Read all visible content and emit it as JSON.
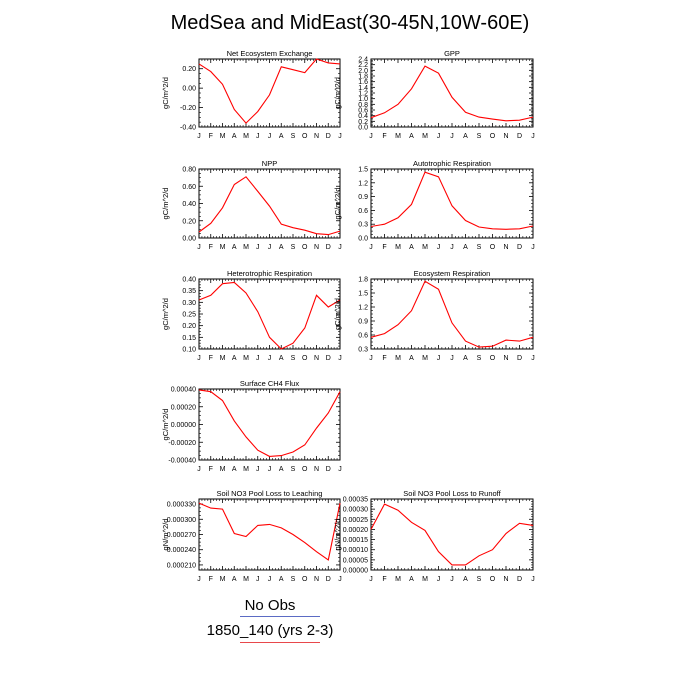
{
  "title": "MedSea and MidEast(30-45N,10W-60E)",
  "legend": {
    "entries": [
      {
        "label": "No Obs",
        "color": "#5b6bc4"
      },
      {
        "label": "1850_140 (yrs 2-3)",
        "color": "#e8484b"
      }
    ]
  },
  "line_color": "#ff0000",
  "chart_data": [
    {
      "type": "line",
      "title": "Net Ecosystem Exchange",
      "ylabel": "gC/m^2/d",
      "categories": [
        "J",
        "F",
        "M",
        "A",
        "M",
        "J",
        "J",
        "A",
        "S",
        "O",
        "N",
        "D",
        "J"
      ],
      "ylim": [
        -0.4,
        0.3
      ],
      "yticks": [
        -0.4,
        -0.2,
        0.0,
        0.2
      ],
      "ytick_labels": [
        "-0.40",
        "-0.20",
        "0.00",
        "0.20"
      ],
      "series": [
        {
          "values": [
            0.25,
            0.17,
            0.04,
            -0.22,
            -0.36,
            -0.24,
            -0.07,
            0.22,
            0.19,
            0.16,
            0.3,
            0.26,
            0.25
          ]
        }
      ]
    },
    {
      "type": "line",
      "title": "GPP",
      "ylabel": "gC/m^2/d",
      "categories": [
        "J",
        "F",
        "M",
        "A",
        "M",
        "J",
        "J",
        "A",
        "S",
        "O",
        "N",
        "D",
        "J"
      ],
      "ylim": [
        0,
        2.4
      ],
      "yticks": [
        0,
        0.2,
        0.4,
        0.6,
        0.8,
        1.0,
        1.2,
        1.4,
        1.6,
        1.8,
        2.0,
        2.2,
        2.4
      ],
      "ytick_labels": [
        "0.0",
        "0.2",
        "0.4",
        "0.6",
        "0.8",
        "1.0",
        "1.2",
        "1.4",
        "1.6",
        "1.8",
        "2.0",
        "2.2",
        "2.4"
      ],
      "series": [
        {
          "values": [
            0.33,
            0.5,
            0.8,
            1.35,
            2.15,
            1.9,
            1.05,
            0.52,
            0.35,
            0.28,
            0.22,
            0.24,
            0.35
          ]
        }
      ]
    },
    {
      "type": "line",
      "title": "NPP",
      "ylabel": "gC/m^2/d",
      "categories": [
        "J",
        "F",
        "M",
        "A",
        "M",
        "J",
        "J",
        "A",
        "S",
        "O",
        "N",
        "D",
        "J"
      ],
      "ylim": [
        0,
        0.8
      ],
      "yticks": [
        0,
        0.2,
        0.4,
        0.6,
        0.8
      ],
      "ytick_labels": [
        "0.00",
        "0.20",
        "0.40",
        "0.60",
        "0.80"
      ],
      "series": [
        {
          "values": [
            0.07,
            0.17,
            0.35,
            0.62,
            0.71,
            0.54,
            0.37,
            0.16,
            0.12,
            0.09,
            0.05,
            0.04,
            0.08
          ]
        }
      ]
    },
    {
      "type": "line",
      "title": "Autotrophic Respiration",
      "ylabel": "gC/m^2/d",
      "categories": [
        "J",
        "F",
        "M",
        "A",
        "M",
        "J",
        "J",
        "A",
        "S",
        "O",
        "N",
        "D",
        "J"
      ],
      "ylim": [
        0,
        1.5
      ],
      "yticks": [
        0,
        0.3,
        0.6,
        0.9,
        1.2,
        1.5
      ],
      "ytick_labels": [
        "0.0",
        "0.3",
        "0.6",
        "0.9",
        "1.2",
        "1.5"
      ],
      "series": [
        {
          "values": [
            0.25,
            0.3,
            0.44,
            0.73,
            1.43,
            1.33,
            0.7,
            0.38,
            0.24,
            0.2,
            0.19,
            0.2,
            0.26
          ]
        }
      ]
    },
    {
      "type": "line",
      "title": "Heterotrophic Respiration",
      "ylabel": "gC/m^2/d",
      "categories": [
        "J",
        "F",
        "M",
        "A",
        "M",
        "J",
        "J",
        "A",
        "S",
        "O",
        "N",
        "D",
        "J"
      ],
      "ylim": [
        0.1,
        0.4
      ],
      "yticks": [
        0.1,
        0.15,
        0.2,
        0.25,
        0.3,
        0.35,
        0.4
      ],
      "ytick_labels": [
        "0.10",
        "0.15",
        "0.20",
        "0.25",
        "0.30",
        "0.35",
        "0.40"
      ],
      "series": [
        {
          "values": [
            0.31,
            0.33,
            0.38,
            0.385,
            0.34,
            0.26,
            0.15,
            0.1,
            0.125,
            0.19,
            0.33,
            0.28,
            0.31
          ]
        }
      ]
    },
    {
      "type": "line",
      "title": "Ecosystem Respiration",
      "ylabel": "gC/m^2/d",
      "categories": [
        "J",
        "F",
        "M",
        "A",
        "M",
        "J",
        "J",
        "A",
        "S",
        "O",
        "N",
        "D",
        "J"
      ],
      "ylim": [
        0.3,
        1.8
      ],
      "yticks": [
        0.3,
        0.6,
        0.9,
        1.2,
        1.5,
        1.8
      ],
      "ytick_labels": [
        "0.3",
        "0.6",
        "0.9",
        "1.2",
        "1.5",
        "1.8"
      ],
      "series": [
        {
          "values": [
            0.55,
            0.63,
            0.82,
            1.12,
            1.75,
            1.58,
            0.86,
            0.47,
            0.34,
            0.36,
            0.49,
            0.47,
            0.55
          ]
        }
      ]
    },
    {
      "type": "line",
      "title": "Surface CH4 Flux",
      "ylabel": "gC/m^2/d",
      "categories": [
        "J",
        "F",
        "M",
        "A",
        "M",
        "J",
        "J",
        "A",
        "S",
        "O",
        "N",
        "D",
        "J"
      ],
      "ylim": [
        -0.0004,
        0.0004
      ],
      "yticks": [
        -0.0004,
        -0.0002,
        0,
        0.0002,
        0.0004
      ],
      "ytick_labels": [
        "-0.00040",
        "-0.00020",
        "0.00000",
        "0.00020",
        "0.00040"
      ],
      "series": [
        {
          "values": [
            0.00039,
            0.00037,
            0.00027,
            4e-05,
            -0.00014,
            -0.00029,
            -0.00036,
            -0.00035,
            -0.00031,
            -0.00023,
            -4e-05,
            0.00013,
            0.00037
          ]
        }
      ]
    },
    {
      "type": "line",
      "title": "Soil NO3 Pool Loss to Leaching",
      "ylabel": "gN/m^2/d",
      "categories": [
        "J",
        "F",
        "M",
        "A",
        "M",
        "J",
        "J",
        "A",
        "S",
        "O",
        "N",
        "D",
        "J"
      ],
      "ylim": [
        0.0002,
        0.00034
      ],
      "yticks": [
        0.00021,
        0.00024,
        0.00027,
        0.0003,
        0.00033
      ],
      "ytick_labels": [
        "0.000210",
        "0.000240",
        "0.000270",
        "0.000300",
        "0.000330"
      ],
      "series": [
        {
          "values": [
            0.000332,
            0.000322,
            0.00032,
            0.000272,
            0.000266,
            0.000288,
            0.00029,
            0.000283,
            0.00027,
            0.000254,
            0.000236,
            0.00022,
            0.000332
          ]
        }
      ]
    },
    {
      "type": "line",
      "title": "Soil NO3 Pool Loss to Runoff",
      "ylabel": "gN/m^2/d",
      "categories": [
        "J",
        "F",
        "M",
        "A",
        "M",
        "J",
        "J",
        "A",
        "S",
        "O",
        "N",
        "D",
        "J"
      ],
      "ylim": [
        0,
        0.00035
      ],
      "yticks": [
        0,
        5e-05,
        0.0001,
        0.00015,
        0.0002,
        0.00025,
        0.0003,
        0.00035
      ],
      "ytick_labels": [
        "0.00000",
        "0.00005",
        "0.00010",
        "0.00015",
        "0.00020",
        "0.00025",
        "0.00030",
        "0.00035"
      ],
      "series": [
        {
          "values": [
            0.0002,
            0.000325,
            0.000295,
            0.000235,
            0.000195,
            9e-05,
            2.5e-05,
            2.5e-05,
            7e-05,
            0.0001,
            0.00018,
            0.00023,
            0.00022
          ]
        }
      ]
    }
  ]
}
